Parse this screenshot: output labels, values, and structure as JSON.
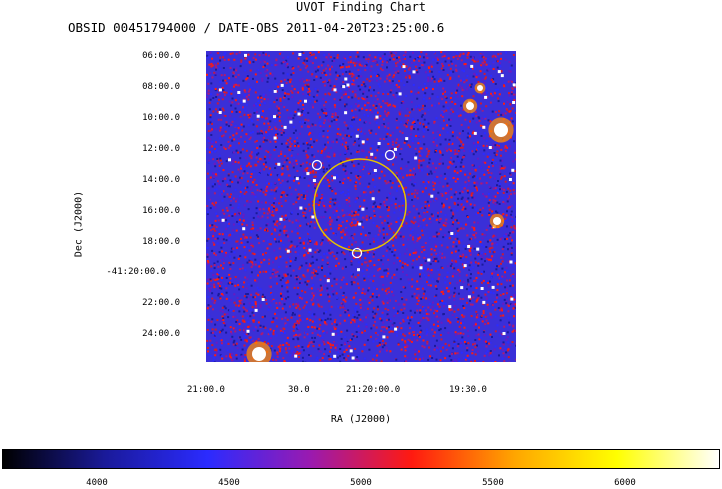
{
  "chart_data": {
    "type": "heatmap",
    "title": "UVOT Finding Chart",
    "subtitle": "OBSID 00451794000 / DATE-OBS 2011-04-20T23:25:00.6",
    "xlabel": "RA (J2000)",
    "ylabel": "Dec (J2000)",
    "x_ticks": [
      "21:00.0",
      "30.0",
      "21:20:00.0",
      "19:30.0"
    ],
    "y_ticks": [
      "06:00.0",
      "08:00.0",
      "10:00.0",
      "12:00.0",
      "14:00.0",
      "16:00.0",
      "18:00.0",
      "-41:20:00.0",
      "22:00.0",
      "24:00.0"
    ],
    "colorbar": {
      "ticks": [
        "4000",
        "4500",
        "5000",
        "5500",
        "6000"
      ],
      "tick_values": [
        4000,
        4500,
        5000,
        5500,
        6000
      ],
      "range": [
        3640,
        6360
      ],
      "colormap": [
        "#000000",
        "#1a1a9a",
        "#2b2bff",
        "#9a1ab0",
        "#ff1a10",
        "#ffa500",
        "#ffff00",
        "#ffffff"
      ]
    },
    "markers": {
      "error_circle": {
        "ra": "21:20:05",
        "dec": "-41:15:40",
        "radius_arcmin": 3.0,
        "color": "#e6c200"
      },
      "sources": [
        {
          "ra": "21:20:35",
          "dec": "-41:13:05",
          "color": "#ffffff"
        },
        {
          "ra": "21:19:45",
          "dec": "-41:12:30",
          "color": "#ffffff"
        },
        {
          "ra": "21:20:05",
          "dec": "-41:18:45",
          "color": "#ffffff"
        }
      ]
    },
    "bright_stars": [
      "top-right",
      "bottom-left",
      "right-middle"
    ]
  }
}
